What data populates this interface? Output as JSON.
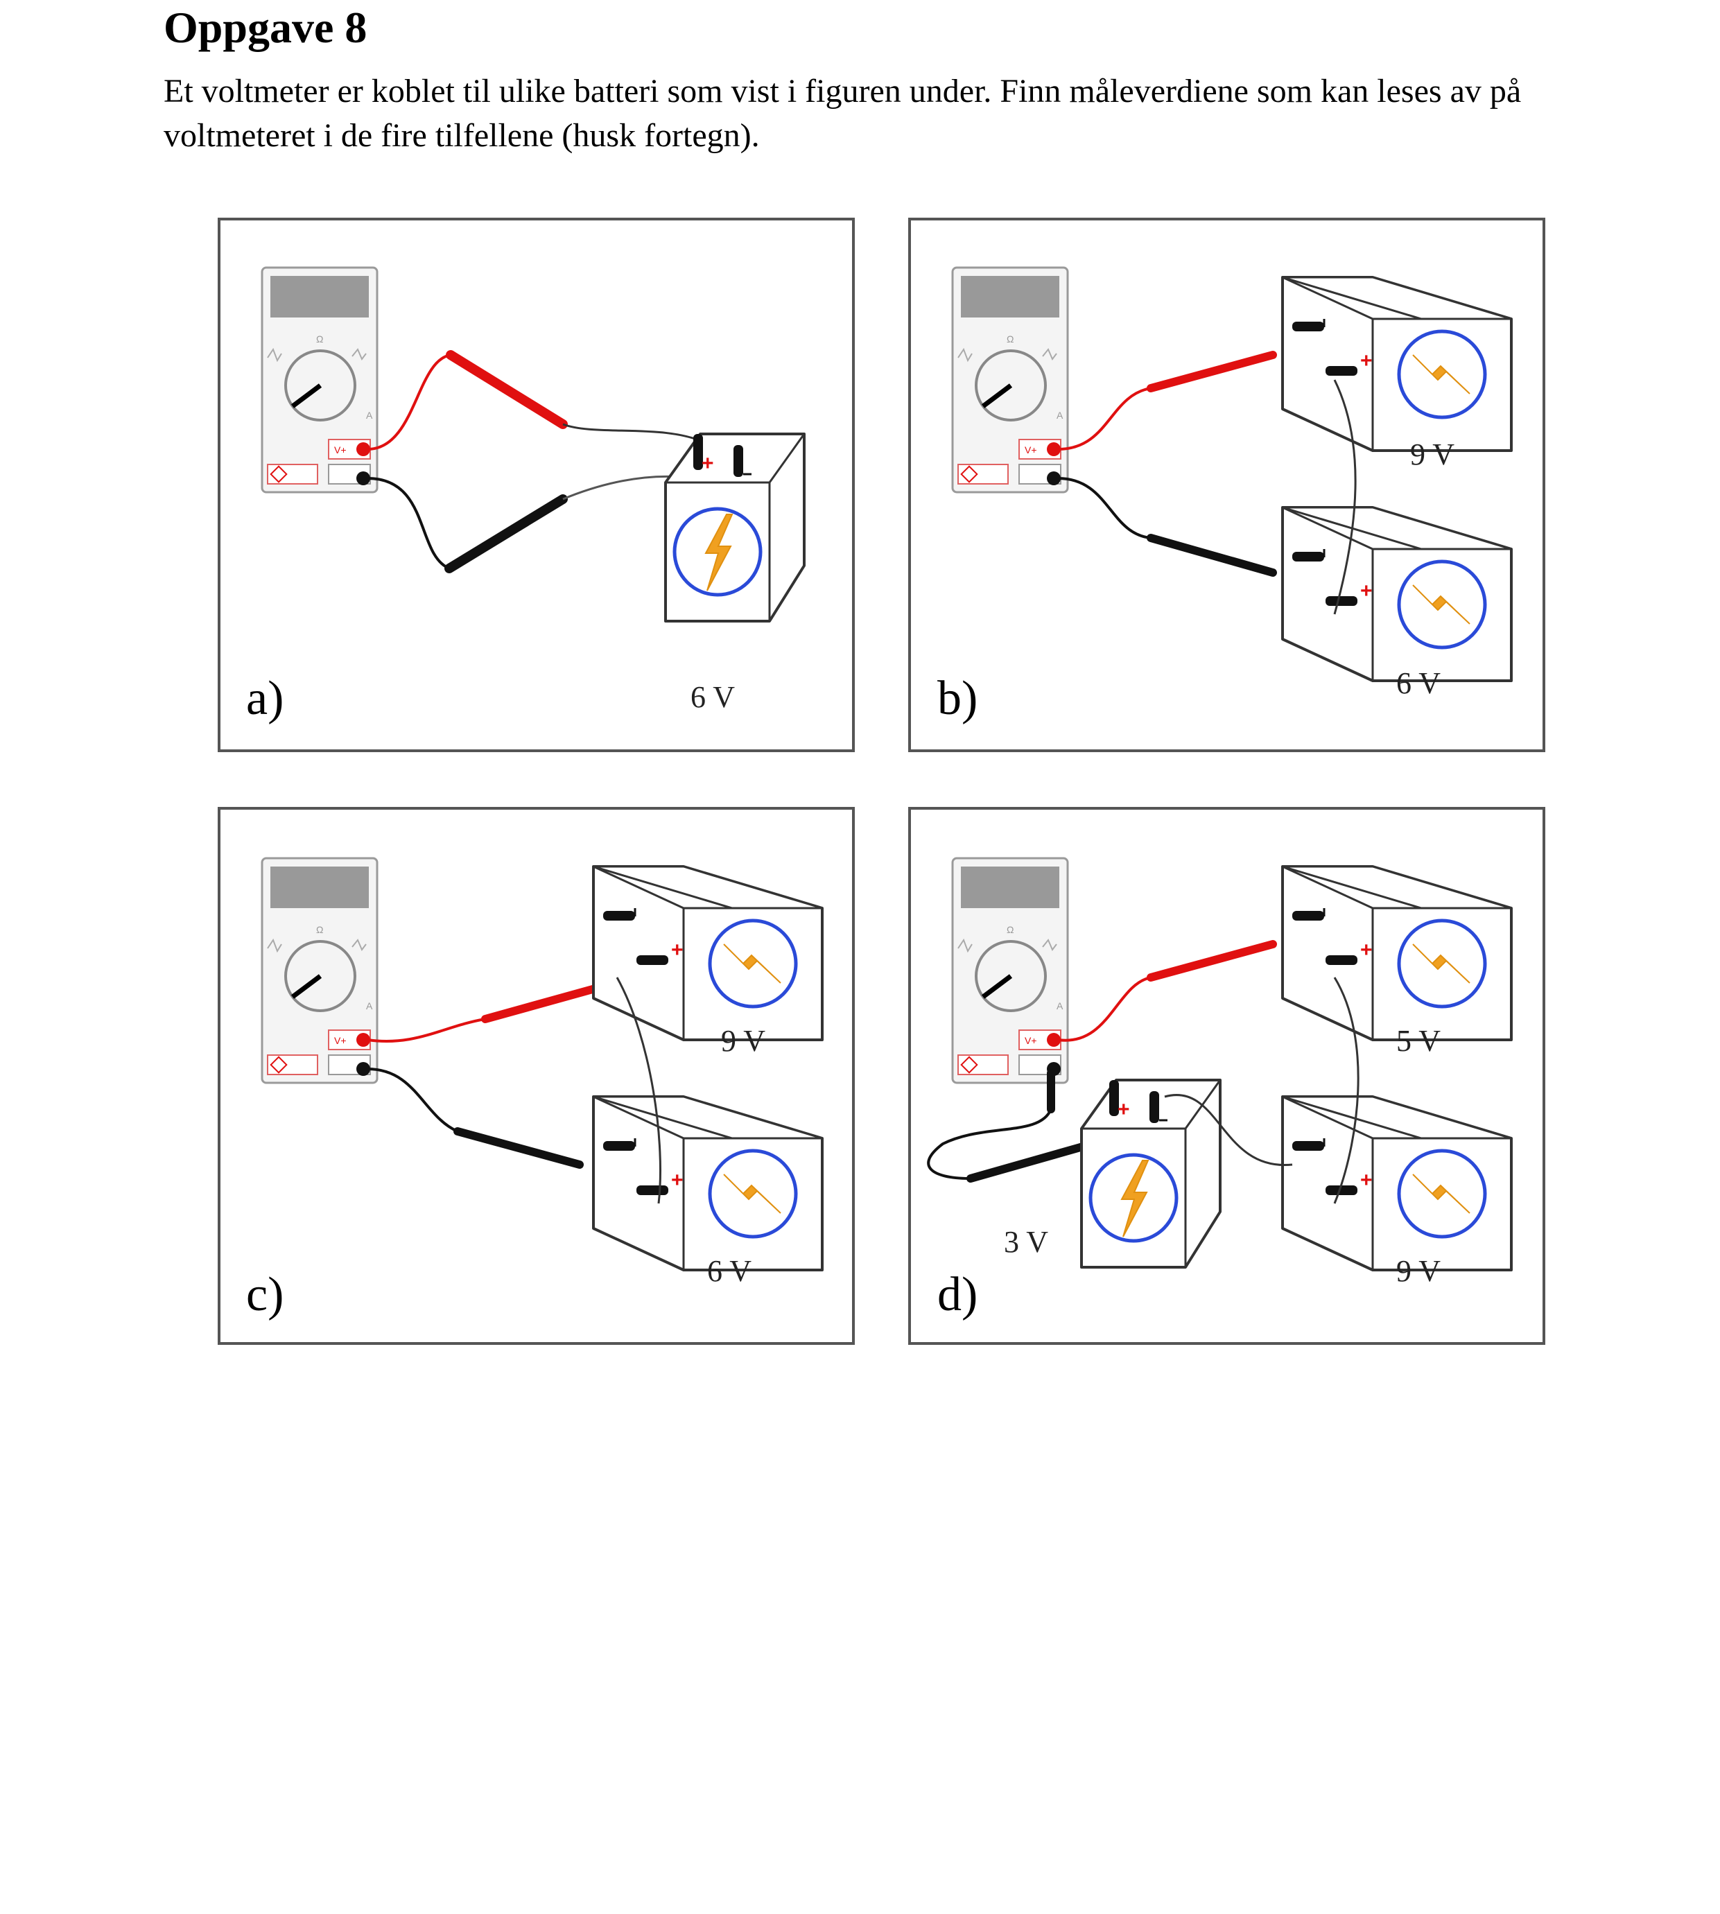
{
  "heading": "Oppgave 8",
  "intro": "Et voltmeter er koblet til ulike batteri som vist i figuren under. Finn måleverdiene som kan leses av på voltmeteret i de fire tilfellene (husk fortegn).",
  "panels": [
    {
      "label": "a)",
      "voltages": [
        "6 V"
      ]
    },
    {
      "label": "b)",
      "voltages": [
        "9 V",
        "6 V"
      ]
    },
    {
      "label": "c)",
      "voltages": [
        "9 V",
        "6 V"
      ]
    },
    {
      "label": "d)",
      "voltages": [
        "5 V",
        "9 V",
        "3 V"
      ]
    }
  ],
  "colors": {
    "positive_lead": "#e01010",
    "negative_lead": "#111111",
    "bolt": "#f0a020",
    "ring": "#2a4ad8"
  }
}
